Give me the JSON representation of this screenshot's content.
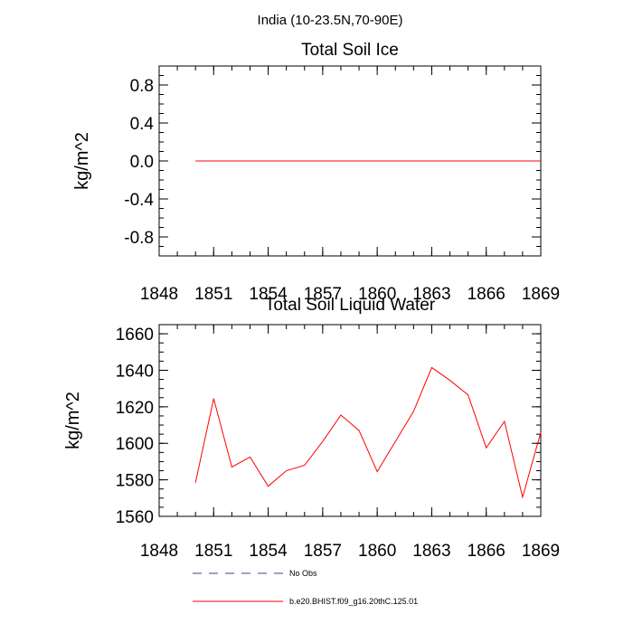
{
  "figure": {
    "title": "India (10-23.5N,70-90E)"
  },
  "colors": {
    "series": "#ff0000",
    "no_obs": "#3f3f8f",
    "axes": "#000000",
    "background": "#ffffff"
  },
  "chart_data": [
    {
      "type": "line",
      "title": "Total Soil Ice",
      "xlabel": "",
      "ylabel": "kg/m^2",
      "xlim": [
        1848,
        1869
      ],
      "ylim": [
        -1,
        1
      ],
      "xticks": [
        "1848",
        "1851",
        "1854",
        "1857",
        "1860",
        "1863",
        "1866",
        "1869"
      ],
      "yticks": [
        "0.8",
        "0.4",
        "0.0",
        "-0.4",
        "-0.8"
      ],
      "grid": false,
      "series": [
        {
          "name": "b.e20.BHIST.f09_g16.20thC.125.01",
          "x": [
            1850,
            1851,
            1852,
            1853,
            1854,
            1855,
            1856,
            1857,
            1858,
            1859,
            1860,
            1861,
            1862,
            1863,
            1864,
            1865,
            1866,
            1867,
            1868,
            1869
          ],
          "y": [
            0,
            0,
            0,
            0,
            0,
            0,
            0,
            0,
            0,
            0,
            0,
            0,
            0,
            0,
            0,
            0,
            0,
            0,
            0,
            0
          ]
        }
      ]
    },
    {
      "type": "line",
      "title": "Total Soil Liquid Water",
      "xlabel": "",
      "ylabel": "kg/m^2",
      "xlim": [
        1848,
        1869
      ],
      "ylim": [
        1560,
        1665
      ],
      "xticks": [
        "1848",
        "1851",
        "1854",
        "1857",
        "1860",
        "1863",
        "1866",
        "1869"
      ],
      "yticks": [
        "1660",
        "1640",
        "1620",
        "1600",
        "1580",
        "1560"
      ],
      "grid": false,
      "series": [
        {
          "name": "b.e20.BHIST.f09_g16.20thC.125.01",
          "x": [
            1850,
            1851,
            1852,
            1853,
            1854,
            1855,
            1856,
            1857,
            1858,
            1859,
            1860,
            1861,
            1862,
            1863,
            1864,
            1865,
            1866,
            1867,
            1868,
            1869
          ],
          "y": [
            1578.5,
            1624.5,
            1587,
            1592.5,
            1576.5,
            1585,
            1588,
            1601,
            1615.5,
            1607,
            1584.5,
            1601,
            1617.5,
            1641.5,
            1634.5,
            1626.5,
            1597.5,
            1612,
            1570.5,
            1606
          ]
        }
      ]
    }
  ],
  "legend": {
    "items": [
      {
        "label": "No Obs",
        "style": "dashed"
      },
      {
        "label": "b.e20.BHIST.f09_g16.20thC.125.01",
        "style": "solid"
      }
    ]
  }
}
